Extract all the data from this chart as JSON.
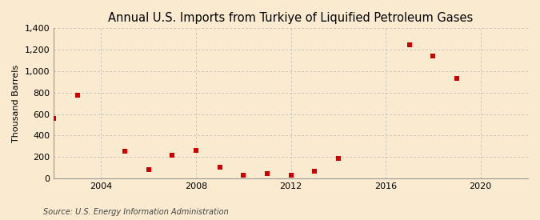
{
  "title": "Annual U.S. Imports from Turkiye of Liquified Petroleum Gases",
  "ylabel": "Thousand Barrels",
  "source": "Source: U.S. Energy Information Administration",
  "background_color": "#faebd0",
  "data": [
    [
      2002,
      560
    ],
    [
      2003,
      775
    ],
    [
      2005,
      255
    ],
    [
      2006,
      80
    ],
    [
      2007,
      220
    ],
    [
      2008,
      260
    ],
    [
      2009,
      105
    ],
    [
      2010,
      30
    ],
    [
      2011,
      45
    ],
    [
      2012,
      30
    ],
    [
      2013,
      65
    ],
    [
      2014,
      185
    ],
    [
      2017,
      1245
    ],
    [
      2018,
      1140
    ],
    [
      2019,
      930
    ]
  ],
  "xlim": [
    2002,
    2022
  ],
  "ylim": [
    0,
    1400
  ],
  "yticks": [
    0,
    200,
    400,
    600,
    800,
    1000,
    1200,
    1400
  ],
  "xticks": [
    2004,
    2008,
    2012,
    2016,
    2020
  ],
  "marker_color": "#cc0000",
  "marker_size": 5,
  "grid_color": "#bbbbbb",
  "title_fontsize": 10.5,
  "label_fontsize": 8,
  "tick_fontsize": 8,
  "source_fontsize": 7
}
